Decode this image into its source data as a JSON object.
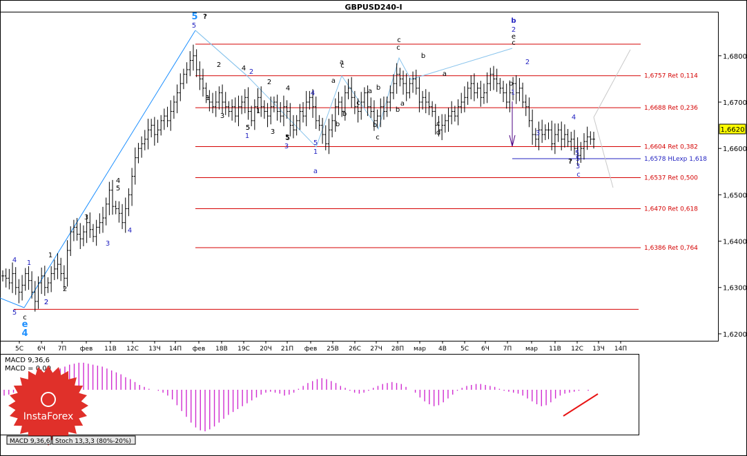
{
  "title": "GBPUSD240-I",
  "colors": {
    "bg": "#ffffff",
    "frame": "#000000",
    "candle": "#000000",
    "retLine": "#d40000",
    "retText": "#d40000",
    "hlexpLine": "#2020c0",
    "hlexpText": "#2020c0",
    "trendLine": "#1e90ff",
    "channelLine": "#87c3ec",
    "fanLine": "#c8c8c8",
    "macdBar": "#d02bd0",
    "waveBlack": "#000000",
    "waveBlue": "#2020c0",
    "waveCyan": "#1e90ff",
    "arrow": "#4b0082",
    "pricebox": "#ffff00",
    "annotRed": "#e81414",
    "logoRed": "#e0302a"
  },
  "chart_data": [
    {
      "type": "candlestick",
      "title": "GBPUSD240-I",
      "symbol": "GBPUSD240-I",
      "ylim": [
        1.6185,
        1.6895
      ],
      "y_ticks": [
        "1,6800",
        "1,6700",
        "1,6600",
        "1,6500",
        "1,6400",
        "1,6300",
        "1,6200"
      ],
      "y_tick_values": [
        1.68,
        1.67,
        1.66,
        1.65,
        1.64,
        1.63,
        1.62
      ],
      "current_price": 1.662,
      "current_price_label": "1,6620",
      "x_ticks": [
        "5С",
        "6Ч",
        "7П",
        "фев",
        "11В",
        "12С",
        "13Ч",
        "14П",
        "фев",
        "18В",
        "19С",
        "20Ч",
        "21П",
        "фев",
        "25В",
        "26С",
        "27Ч",
        "28П",
        "мар",
        "4В",
        "5С",
        "6Ч",
        "7П",
        "мар",
        "11В",
        "12С",
        "13Ч",
        "14П"
      ],
      "levels": [
        {
          "price": 1.6825,
          "label": ""
        },
        {
          "price": 1.6757,
          "label": "1,6757 Ret 0,114"
        },
        {
          "price": 1.6688,
          "label": "1,6688 Ret 0,236"
        },
        {
          "price": 1.6604,
          "label": "1,6604 Ret 0,382"
        },
        {
          "price": 1.6578,
          "label": "1,6578 HLexp 1,618"
        },
        {
          "price": 1.6537,
          "label": "1,6537 Ret 0,500"
        },
        {
          "price": 1.647,
          "label": "1,6470 Ret 0,618"
        },
        {
          "price": 1.6386,
          "label": "1,6386 Ret 0,764"
        },
        {
          "price": 1.6253,
          "label": ""
        }
      ],
      "closes": [
        1.6325,
        1.632,
        1.631,
        1.633,
        1.63,
        1.629,
        1.6305,
        1.633,
        1.6315,
        1.629,
        1.627,
        1.631,
        1.6325,
        1.63,
        1.631,
        1.633,
        1.634,
        1.635,
        1.633,
        1.632,
        1.638,
        1.642,
        1.643,
        1.6415,
        1.6405,
        1.642,
        1.644,
        1.6425,
        1.641,
        1.643,
        1.644,
        1.645,
        1.648,
        1.651,
        1.6475,
        1.647,
        1.646,
        1.644,
        1.647,
        1.65,
        1.654,
        1.658,
        1.66,
        1.661,
        1.662,
        1.664,
        1.665,
        1.663,
        1.664,
        1.666,
        1.667,
        1.666,
        1.668,
        1.67,
        1.672,
        1.674,
        1.676,
        1.677,
        1.679,
        1.68,
        1.677,
        1.675,
        1.673,
        1.671,
        1.67,
        1.669,
        1.67,
        1.672,
        1.67,
        1.669,
        1.668,
        1.669,
        1.667,
        1.669,
        1.67,
        1.671,
        1.668,
        1.666,
        1.669,
        1.671,
        1.669,
        1.668,
        1.667,
        1.669,
        1.67,
        1.668,
        1.667,
        1.669,
        1.668,
        1.665,
        1.664,
        1.666,
        1.668,
        1.667,
        1.67,
        1.671,
        1.669,
        1.666,
        1.665,
        1.663,
        1.661,
        1.664,
        1.666,
        1.669,
        1.67,
        1.668,
        1.672,
        1.673,
        1.671,
        1.669,
        1.668,
        1.67,
        1.672,
        1.669,
        1.668,
        1.666,
        1.667,
        1.669,
        1.668,
        1.67,
        1.672,
        1.674,
        1.676,
        1.675,
        1.674,
        1.672,
        1.674,
        1.675,
        1.673,
        1.67,
        1.671,
        1.67,
        1.669,
        1.668,
        1.665,
        1.664,
        1.665,
        1.666,
        1.667,
        1.668,
        1.667,
        1.669,
        1.67,
        1.671,
        1.673,
        1.674,
        1.672,
        1.673,
        1.671,
        1.672,
        1.674,
        1.676,
        1.675,
        1.674,
        1.673,
        1.672,
        1.67,
        1.672,
        1.674,
        1.672,
        1.673,
        1.67,
        1.669,
        1.666,
        1.663,
        1.662,
        1.664,
        1.663,
        1.664,
        1.664,
        1.661,
        1.663,
        1.664,
        1.662,
        1.663,
        1.6615,
        1.662,
        1.66,
        1.6585,
        1.66,
        1.6615,
        1.6625,
        1.662,
        1.662
      ],
      "macd_label": "MACD 9,36,6",
      "macd_signal_label": "MACD = 0,00",
      "macd_values": [
        -0.6,
        -0.5,
        -0.3,
        0.1,
        0.4,
        0.6,
        0.9,
        1.2,
        1.3,
        1.5,
        1.8,
        2.0,
        2.2,
        2.4,
        2.6,
        2.7,
        2.8,
        2.8,
        2.7,
        2.6,
        2.5,
        2.4,
        2.2,
        2.0,
        1.8,
        1.6,
        1.3,
        1.1,
        0.8,
        0.5,
        0.3,
        0.1,
        0.0,
        -0.1,
        -0.3,
        -0.6,
        -1.0,
        -1.6,
        -2.2,
        -2.8,
        -3.4,
        -3.9,
        -4.2,
        -4.3,
        -4.1,
        -3.8,
        -3.4,
        -3.0,
        -2.6,
        -2.3,
        -2.0,
        -1.7,
        -1.4,
        -1.1,
        -0.8,
        -0.5,
        -0.3,
        -0.2,
        -0.3,
        -0.4,
        -0.6,
        -0.5,
        -0.3,
        0.1,
        0.4,
        0.7,
        0.9,
        1.1,
        1.2,
        1.1,
        0.9,
        0.7,
        0.4,
        0.2,
        -0.1,
        -0.3,
        -0.4,
        -0.3,
        -0.1,
        0.2,
        0.4,
        0.6,
        0.7,
        0.8,
        0.7,
        0.6,
        0.3,
        0.0,
        -0.3,
        -0.8,
        -1.2,
        -1.5,
        -1.7,
        -1.6,
        -1.3,
        -0.9,
        -0.5,
        -0.1,
        0.2,
        0.4,
        0.5,
        0.6,
        0.6,
        0.5,
        0.4,
        0.3,
        0.1,
        -0.1,
        -0.2,
        -0.3,
        -0.4,
        -0.6,
        -0.9,
        -1.2,
        -1.5,
        -1.7,
        -1.6,
        -1.3,
        -0.9,
        -0.6,
        -0.4,
        -0.3,
        -0.2,
        -0.1,
        0.0,
        -0.1
      ],
      "stoch_label": "Stoch 13,3,3 (80%-20%)"
    }
  ],
  "wave_labels": [
    {
      "text": "4",
      "color": "blue"
    },
    {
      "text": "1",
      "color": "blue"
    },
    {
      "text": "2",
      "color": "blue"
    },
    {
      "text": "1",
      "color": "black"
    },
    {
      "text": "2",
      "color": "black"
    },
    {
      "text": "3",
      "color": "black"
    },
    {
      "text": "4",
      "color": "black"
    },
    {
      "text": "3",
      "color": "blue"
    },
    {
      "text": "5",
      "color": "black"
    },
    {
      "text": "4",
      "color": "blue"
    },
    {
      "text": "5",
      "color": "cyan"
    },
    {
      "text": "?",
      "color": "black"
    },
    {
      "text": "5",
      "color": "blue"
    },
    {
      "text": "2",
      "color": "black"
    },
    {
      "text": "1",
      "color": "black"
    },
    {
      "text": "3",
      "color": "black"
    },
    {
      "text": "4",
      "color": "black"
    },
    {
      "text": "2",
      "color": "blue"
    },
    {
      "text": "5",
      "color": "black"
    },
    {
      "text": "1",
      "color": "blue"
    },
    {
      "text": "2",
      "color": "black"
    },
    {
      "text": "1",
      "color": "black"
    },
    {
      "text": "3",
      "color": "black"
    },
    {
      "text": "4",
      "color": "black"
    },
    {
      "text": "5",
      "color": "black"
    },
    {
      "text": "3",
      "color": "blue"
    },
    {
      "text": "4",
      "color": "blue"
    },
    {
      "text": "5",
      "color": "blue"
    },
    {
      "text": "1",
      "color": "blue"
    },
    {
      "text": "a",
      "color": "blue"
    },
    {
      "text": "a",
      "color": "black"
    },
    {
      "text": "c",
      "color": "black"
    },
    {
      "text": "a",
      "color": "black"
    },
    {
      "text": "b",
      "color": "black"
    },
    {
      "text": "b",
      "color": "black"
    },
    {
      "text": "c",
      "color": "black"
    },
    {
      "text": "a",
      "color": "black"
    },
    {
      "text": "b",
      "color": "black"
    },
    {
      "text": "c",
      "color": "black"
    },
    {
      "text": "b",
      "color": "black"
    },
    {
      "text": "c",
      "color": "black"
    },
    {
      "text": "c",
      "color": "black"
    },
    {
      "text": "b",
      "color": "black"
    },
    {
      "text": "a",
      "color": "black"
    },
    {
      "text": "a",
      "color": "black"
    },
    {
      "text": "b",
      "color": "black"
    },
    {
      "text": "c",
      "color": "black"
    },
    {
      "text": "d",
      "color": "black"
    },
    {
      "text": "b",
      "color": "blue"
    },
    {
      "text": "2",
      "color": "blue"
    },
    {
      "text": "e",
      "color": "black"
    },
    {
      "text": "c",
      "color": "black"
    },
    {
      "text": "b",
      "color": "black"
    },
    {
      "text": "2",
      "color": "blue"
    },
    {
      "text": "1",
      "color": "blue"
    },
    {
      "text": "3",
      "color": "blue"
    },
    {
      "text": "4",
      "color": "blue"
    },
    {
      "text": "?",
      "color": "black"
    },
    {
      "text": "5",
      "color": "blue"
    },
    {
      "text": "3",
      "color": "blue"
    },
    {
      "text": "c",
      "color": "blue"
    },
    {
      "text": "5",
      "color": "blue"
    },
    {
      "text": "c",
      "color": "black"
    },
    {
      "text": "e",
      "color": "cyan"
    },
    {
      "text": "4",
      "color": "cyan"
    },
    {
      "text": "2",
      "color": "blue"
    },
    {
      "text": "5",
      "color": "blue"
    },
    {
      "text": "5",
      "color": "black"
    },
    {
      "text": "5",
      "color": "black"
    }
  ],
  "indicator_tabs": [
    {
      "label": "MACD 9,36,6"
    },
    {
      "label": "Stoch 13,3,3 (80%-20%)"
    }
  ],
  "logo": {
    "text": "InstaForex"
  }
}
